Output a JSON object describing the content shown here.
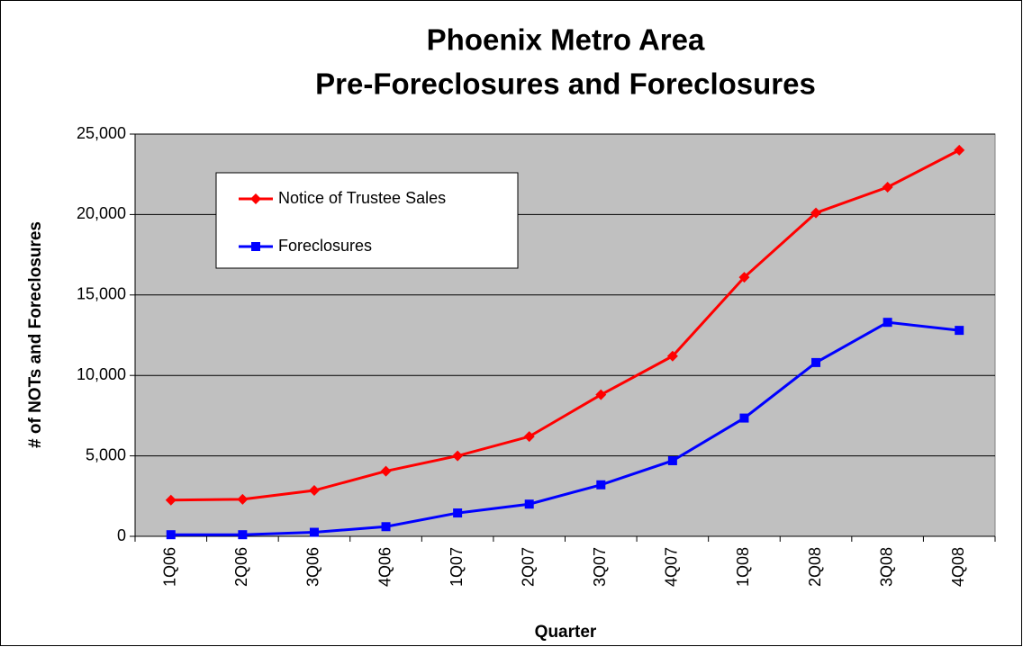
{
  "chart_data": {
    "type": "line",
    "title": [
      "Phoenix Metro Area",
      "Pre-Foreclosures and Foreclosures"
    ],
    "x_label": "Quarter",
    "y_label": "# of NOTs and Foreclosures",
    "categories": [
      "1Q06",
      "2Q06",
      "3Q06",
      "4Q06",
      "1Q07",
      "2Q07",
      "3Q07",
      "4Q07",
      "1Q08",
      "2Q08",
      "3Q08",
      "4Q08"
    ],
    "series": [
      {
        "name": "Notice of Trustee Sales",
        "color": "#ff0000",
        "marker": "diamond",
        "values": [
          2250,
          2300,
          2850,
          4050,
          5000,
          6200,
          8800,
          11200,
          16100,
          20100,
          21700,
          24000
        ]
      },
      {
        "name": "Foreclosures",
        "color": "#0000ff",
        "marker": "square",
        "values": [
          100,
          100,
          250,
          600,
          1450,
          2000,
          3200,
          4700,
          7350,
          10800,
          13300,
          12800
        ]
      }
    ],
    "ylim": [
      0,
      25000
    ],
    "yticks": [
      0,
      {
        "value": 5000,
        "label": "5,000"
      },
      {
        "value": 10000,
        "label": "10,000"
      },
      {
        "value": 15000,
        "label": "15,000"
      },
      {
        "value": 20000,
        "label": "20,000"
      },
      {
        "value": 25000,
        "label": "25,000"
      }
    ],
    "grid": true,
    "plot_background": "#c0c0c0",
    "legend": "upper left"
  }
}
